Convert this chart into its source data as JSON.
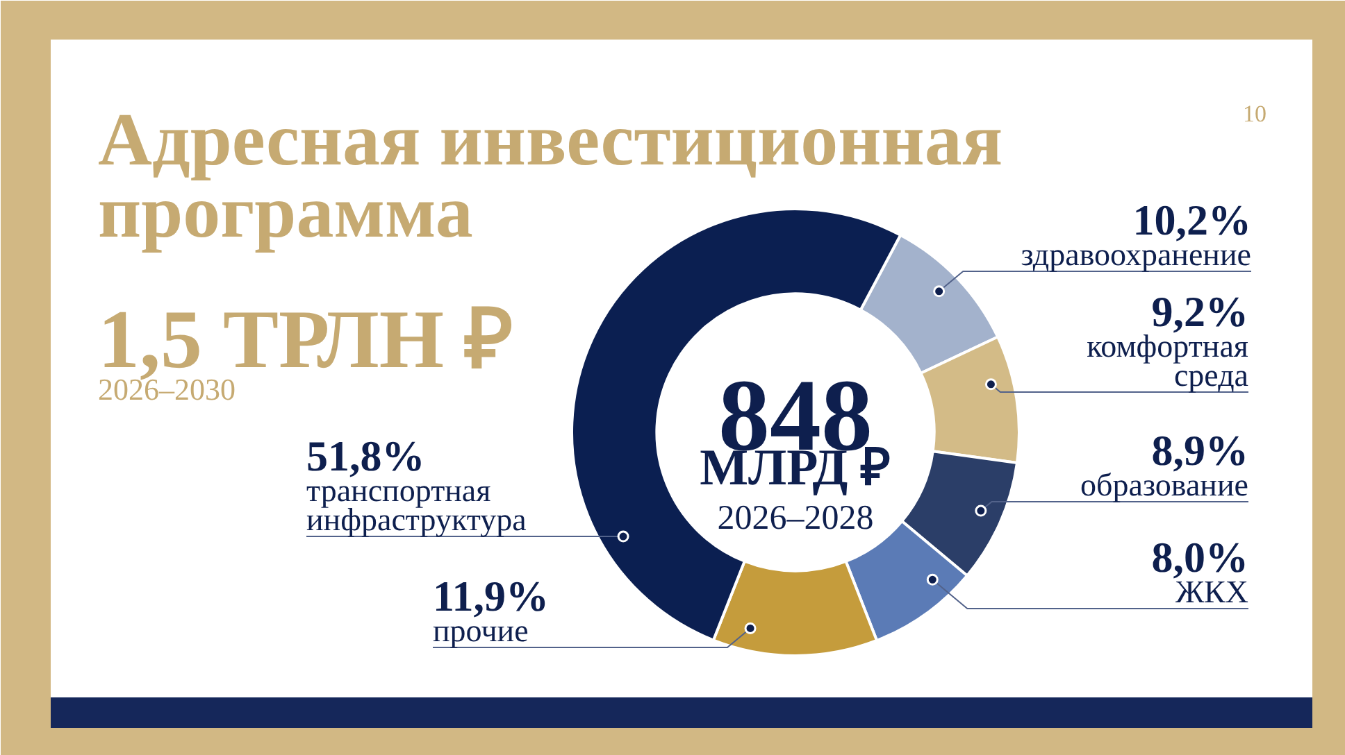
{
  "chart_data": {
    "type": "donut",
    "title": "Адресная инвестиционная программа",
    "subtitle": "1,5 ТРЛН ₽",
    "categories": [
      "здравоохранение",
      "комфортная среда",
      "образование",
      "ЖКХ",
      "прочие",
      "транспортная инфраструктура"
    ],
    "values": [
      10.2,
      9.2,
      8.9,
      8.0,
      11.9,
      51.8
    ],
    "colors": [
      "#a3b2cc",
      "#d3bb87",
      "#2b3e68",
      "#5b7bb6",
      "#c59c3c",
      "#0b1f51"
    ],
    "value_labels": [
      "10,2%",
      "9,2%",
      "8,9%",
      "8,0%",
      "11,9%",
      "51,8%"
    ],
    "annotations": [
      "2026–2030",
      "848",
      "МЛРД ₽",
      "2026–2028",
      "10"
    ]
  }
}
